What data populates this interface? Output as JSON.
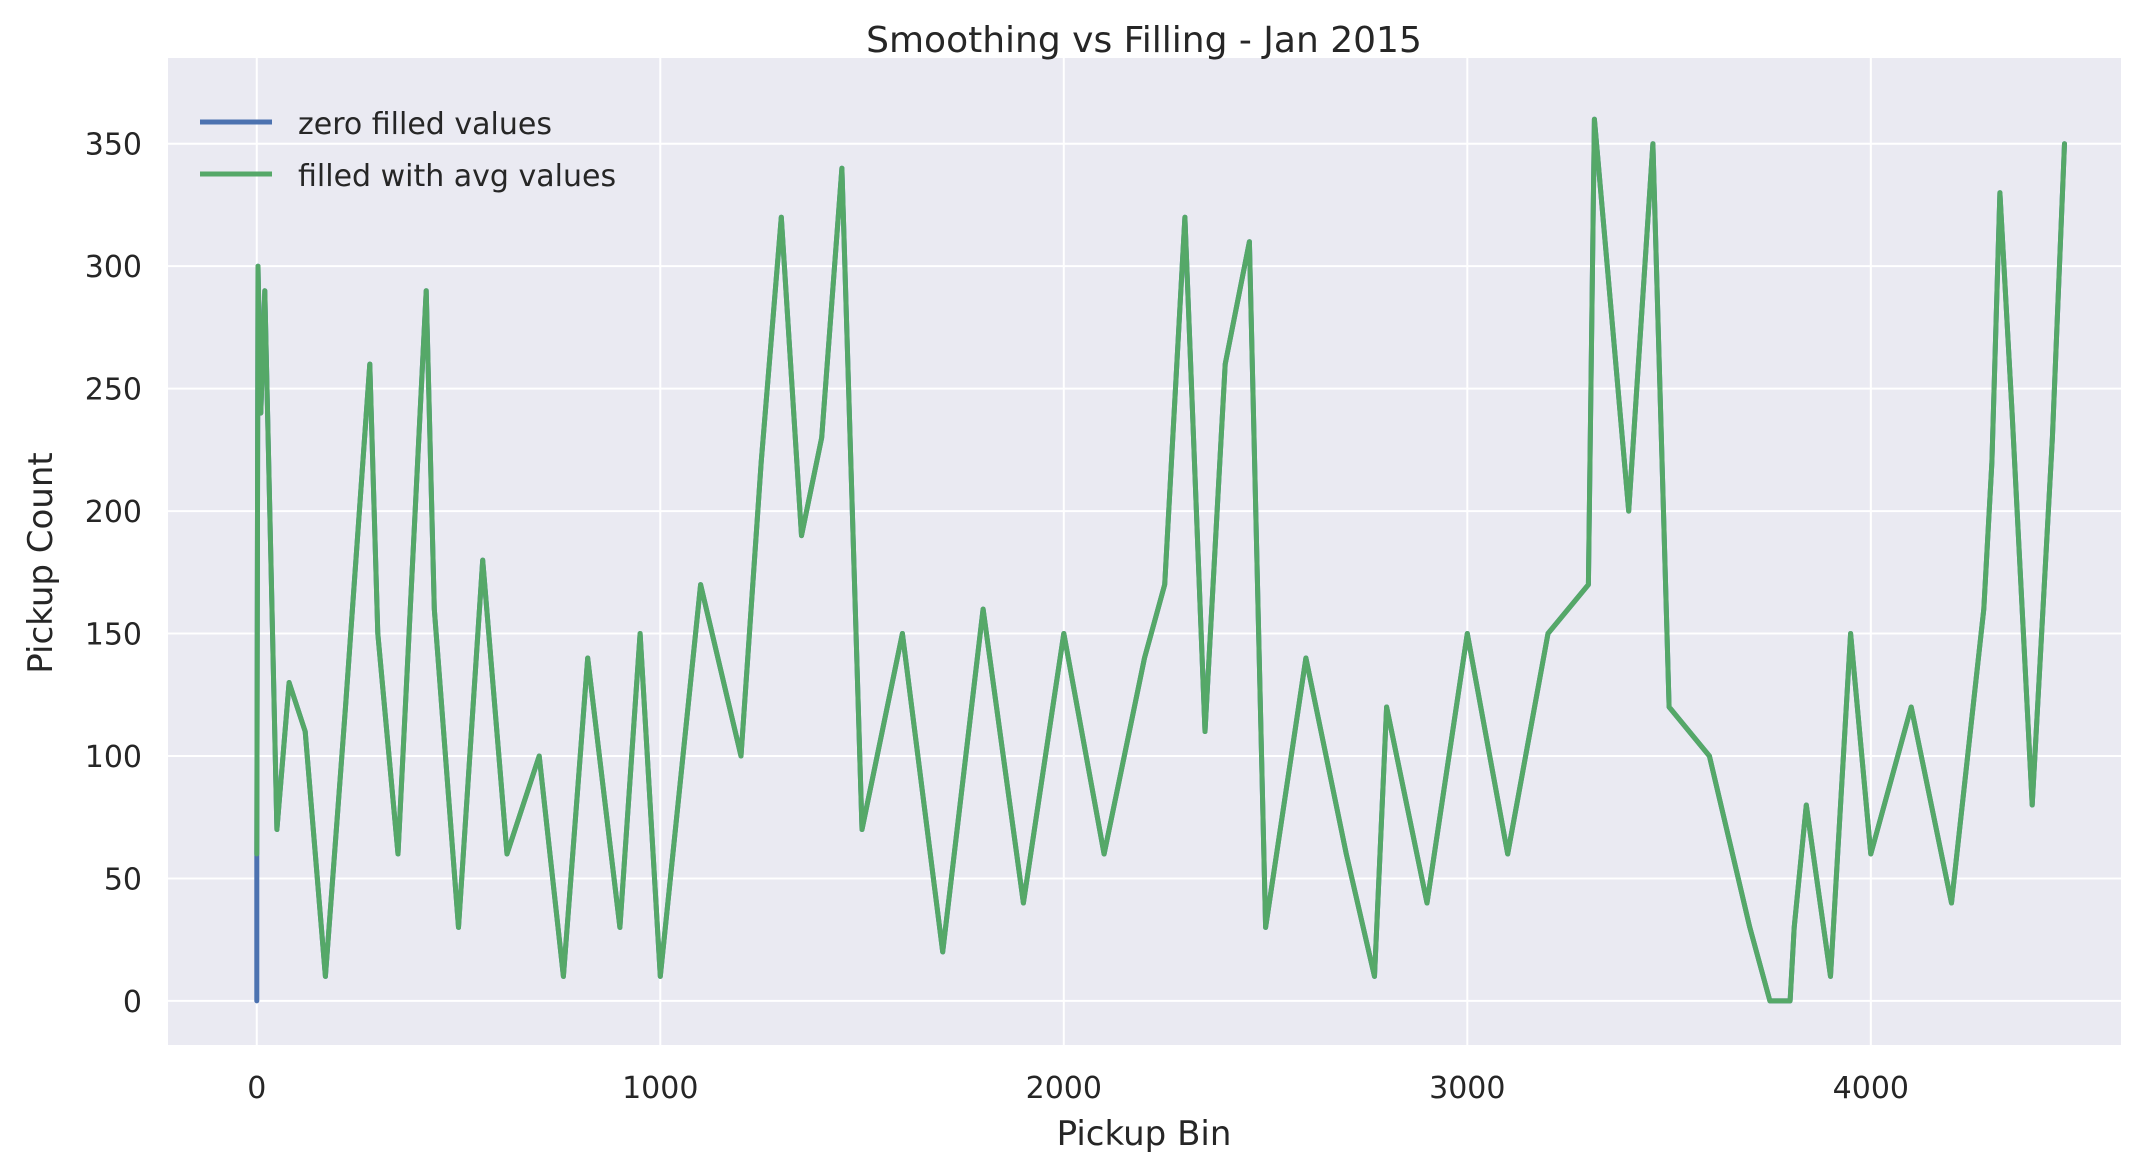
{
  "chart_data": {
    "type": "line",
    "title": "Smoothing vs Filling - Jan 2015",
    "xlabel": "Pickup Bin",
    "ylabel": "Pickup Count",
    "xlim": [
      -220,
      4620
    ],
    "ylim": [
      -18,
      385
    ],
    "xticks": [
      0,
      1000,
      2000,
      3000,
      4000
    ],
    "xtick_labels": [
      "0",
      "1000",
      "2000",
      "3000",
      "4000"
    ],
    "yticks": [
      0,
      50,
      100,
      150,
      200,
      250,
      300,
      350
    ],
    "ytick_labels": [
      "0",
      "50",
      "100",
      "150",
      "200",
      "250",
      "300",
      "350"
    ],
    "grid": true,
    "legend_position": "top-left",
    "series": [
      {
        "name": "zero filled values",
        "color": "#4c72b0",
        "x": [
          0,
          0,
          3,
          10,
          20,
          35,
          50,
          80,
          120,
          170,
          220,
          280,
          300,
          350,
          420,
          440,
          500,
          560,
          620,
          700,
          760,
          820,
          900,
          950,
          1000,
          1100,
          1200,
          1250,
          1300,
          1350,
          1400,
          1450,
          1500,
          1600,
          1700,
          1800,
          1900,
          2000,
          2100,
          2200,
          2250,
          2300,
          2350,
          2400,
          2460,
          2500,
          2600,
          2700,
          2770,
          2800,
          2900,
          3000,
          3100,
          3200,
          3300,
          3315,
          3400,
          3460,
          3500,
          3600,
          3700,
          3750,
          3760,
          3800,
          3810,
          3840,
          3900,
          3950,
          4000,
          4100,
          4200,
          4280,
          4300,
          4320,
          4350,
          4400,
          4450,
          4480
        ],
        "y": [
          0,
          60,
          300,
          240,
          290,
          180,
          70,
          130,
          110,
          10,
          120,
          260,
          150,
          60,
          290,
          160,
          30,
          180,
          60,
          100,
          10,
          140,
          30,
          150,
          10,
          170,
          100,
          220,
          320,
          190,
          230,
          340,
          70,
          150,
          20,
          160,
          40,
          150,
          60,
          140,
          170,
          320,
          110,
          260,
          310,
          30,
          140,
          60,
          10,
          120,
          40,
          150,
          60,
          150,
          170,
          360,
          200,
          350,
          120,
          100,
          30,
          0,
          0,
          0,
          30,
          80,
          10,
          150,
          60,
          120,
          40,
          160,
          220,
          330,
          240,
          80,
          230,
          350
        ]
      },
      {
        "name": "filled with avg values",
        "color": "#55a868",
        "x": [
          0,
          3,
          10,
          20,
          35,
          50,
          80,
          120,
          170,
          220,
          280,
          300,
          350,
          420,
          440,
          500,
          560,
          620,
          700,
          760,
          820,
          900,
          950,
          1000,
          1100,
          1200,
          1250,
          1300,
          1350,
          1400,
          1450,
          1500,
          1600,
          1700,
          1800,
          1900,
          2000,
          2100,
          2200,
          2250,
          2300,
          2350,
          2400,
          2460,
          2500,
          2600,
          2700,
          2770,
          2800,
          2900,
          3000,
          3100,
          3200,
          3300,
          3315,
          3400,
          3460,
          3500,
          3600,
          3700,
          3750,
          3760,
          3800,
          3810,
          3840,
          3900,
          3950,
          4000,
          4100,
          4200,
          4280,
          4300,
          4320,
          4350,
          4400,
          4450,
          4480
        ],
        "y": [
          60,
          300,
          240,
          290,
          180,
          70,
          130,
          110,
          10,
          120,
          260,
          150,
          60,
          290,
          160,
          30,
          180,
          60,
          100,
          10,
          140,
          30,
          150,
          10,
          170,
          100,
          220,
          320,
          190,
          230,
          340,
          70,
          150,
          20,
          160,
          40,
          150,
          60,
          140,
          170,
          320,
          110,
          260,
          310,
          30,
          140,
          60,
          10,
          120,
          40,
          150,
          60,
          150,
          170,
          360,
          200,
          350,
          120,
          100,
          30,
          0,
          0,
          0,
          30,
          80,
          10,
          150,
          60,
          120,
          40,
          160,
          220,
          330,
          240,
          80,
          230,
          350
        ]
      }
    ]
  }
}
